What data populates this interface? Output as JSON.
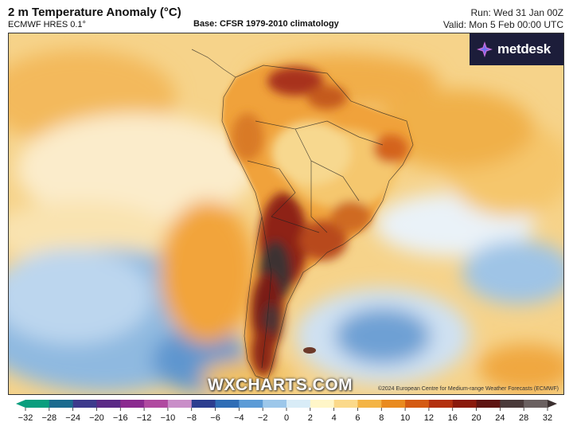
{
  "header": {
    "title": "2 m Temperature Anomaly (°C)",
    "model": "ECMWF HRES 0.1°",
    "base": "Base: CFSR 1979-2010 climatology",
    "run": "Run: Wed 31 Jan 00Z",
    "valid": "Valid: Mon 5 Feb 00:00 UTC"
  },
  "logo": {
    "text": "metdesk",
    "icon": "metdesk-star-icon"
  },
  "watermark": "WXCHARTS.COM",
  "credit": "©2024 European Centre for Medium-range Weather Forecasts (ECMWF)",
  "colorbar": {
    "ticks": [
      "−32",
      "−28",
      "−24",
      "−20",
      "−16",
      "−12",
      "−10",
      "−8",
      "−6",
      "−4",
      "−2",
      "0",
      "2",
      "4",
      "6",
      "8",
      "10",
      "12",
      "16",
      "20",
      "24",
      "28",
      "32"
    ],
    "colors": [
      "#0a9e7e",
      "#1b6b8f",
      "#3d3a8c",
      "#5b2a86",
      "#8a2a8f",
      "#b04aa0",
      "#c98ec8",
      "#2c3d8f",
      "#2f6db5",
      "#5b9bd6",
      "#9cc7ea",
      "#d8ecf7",
      "#fff6c8",
      "#fbd98a",
      "#f4b445",
      "#e98a1f",
      "#d45a12",
      "#b3300e",
      "#8a1a0c",
      "#5e1412",
      "#4a3a3a",
      "#6a6060",
      "#8a8a8a"
    ]
  },
  "map_region": "South America"
}
